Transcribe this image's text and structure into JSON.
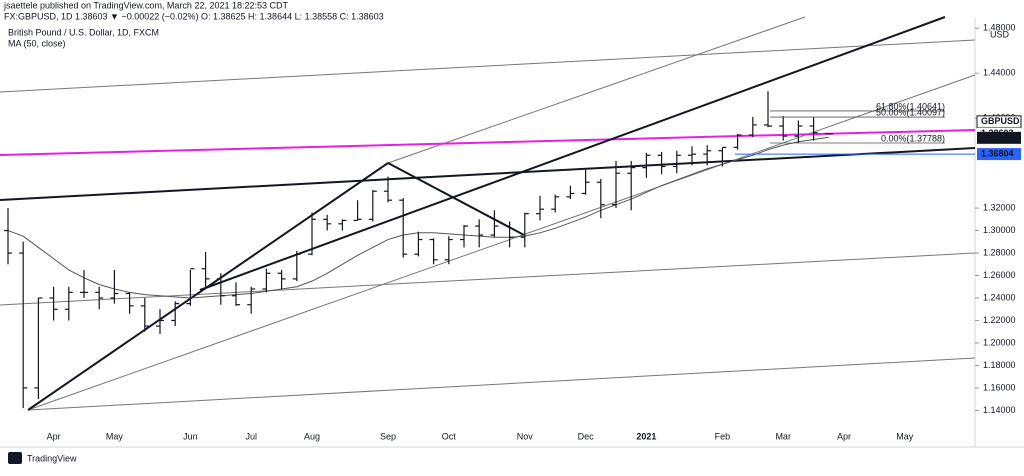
{
  "header": {
    "publisher": "jsaettele published on TradingView.com, March 22, 2021 18:22:53 CDT",
    "symbol_line": "FX:GBPUSD, 1D 1.38603 ▼ −0.00022 (−0.02%) O: 1.38625 H: 1.38644 L: 1.38558 C: 1.38603"
  },
  "footer": {
    "brand": "TradingView"
  },
  "chart_data": {
    "type": "ohlc",
    "title": "British Pound / U.S. Dollar, 1D, FXCM",
    "indicator": "MA (50, close)",
    "currency": "USD",
    "categories": [
      null,
      null,
      null,
      "Apr",
      null,
      null,
      null,
      "May",
      null,
      null,
      null,
      null,
      "Jun",
      null,
      null,
      null,
      "Jul",
      null,
      null,
      null,
      "Aug",
      null,
      null,
      null,
      null,
      "Sep",
      null,
      null,
      null,
      "Oct",
      null,
      null,
      null,
      null,
      "Nov",
      null,
      null,
      null,
      "Dec",
      null,
      null,
      null,
      "2021",
      null,
      null,
      null,
      null,
      "Feb",
      null,
      null,
      null,
      "Mar",
      null,
      null,
      null,
      "Apr",
      null,
      null,
      null,
      "May",
      null,
      null,
      null,
      null
    ],
    "open": [
      1.3,
      1.28,
      1.16,
      1.24,
      1.23,
      1.245,
      1.245,
      1.24,
      1.244,
      1.233,
      1.215,
      1.22,
      1.235,
      1.266,
      1.257,
      1.242,
      1.234,
      1.248,
      1.262,
      1.257,
      1.279,
      1.31,
      1.306,
      1.309,
      1.31,
      1.335,
      1.327,
      1.279,
      1.292,
      1.274,
      1.292,
      1.304,
      1.296,
      1.304,
      1.294,
      1.315,
      1.319,
      1.33,
      1.333,
      1.343,
      1.323,
      1.351,
      1.356,
      1.367,
      1.357,
      1.367,
      1.368,
      1.371,
      1.374,
      1.385,
      1.394,
      1.393,
      1.384,
      1.393,
      1.38625,
      null,
      null,
      null,
      null,
      null,
      null,
      null,
      null,
      null
    ],
    "high": [
      1.32,
      1.29,
      1.24,
      1.25,
      1.25,
      1.265,
      1.25,
      1.265,
      1.245,
      1.24,
      1.23,
      1.237,
      1.265,
      1.281,
      1.262,
      1.254,
      1.25,
      1.266,
      1.265,
      1.282,
      1.316,
      1.314,
      1.31,
      1.327,
      1.336,
      1.348,
      1.329,
      1.299,
      1.293,
      1.295,
      1.305,
      1.31,
      1.318,
      1.308,
      1.316,
      1.331,
      1.332,
      1.34,
      1.354,
      1.346,
      1.362,
      1.362,
      1.369,
      1.37,
      1.371,
      1.375,
      1.376,
      1.374,
      1.386,
      1.401,
      1.424,
      1.402,
      1.398,
      1.401,
      1.38644,
      null,
      null,
      null,
      null,
      null,
      null,
      null,
      null,
      null
    ],
    "low": [
      1.27,
      1.142,
      1.15,
      1.22,
      1.22,
      1.24,
      1.23,
      1.235,
      1.226,
      1.21,
      1.208,
      1.215,
      1.233,
      1.25,
      1.234,
      1.233,
      1.226,
      1.245,
      1.248,
      1.255,
      1.278,
      1.3,
      1.3,
      1.309,
      1.308,
      1.325,
      1.276,
      1.277,
      1.27,
      1.27,
      1.285,
      1.285,
      1.294,
      1.285,
      1.285,
      1.309,
      1.316,
      1.328,
      1.332,
      1.311,
      1.32,
      1.318,
      1.347,
      1.35,
      1.351,
      1.358,
      1.358,
      1.357,
      1.372,
      1.383,
      1.392,
      1.38,
      1.378,
      1.38,
      1.38558,
      null,
      null,
      null,
      null,
      null,
      null,
      null,
      null,
      null
    ],
    "close": [
      1.28,
      1.16,
      1.24,
      1.23,
      1.245,
      1.245,
      1.24,
      1.244,
      1.233,
      1.215,
      1.22,
      1.235,
      1.266,
      1.257,
      1.242,
      1.234,
      1.248,
      1.262,
      1.257,
      1.279,
      1.31,
      1.306,
      1.309,
      1.31,
      1.335,
      1.327,
      1.279,
      1.292,
      1.274,
      1.292,
      1.304,
      1.296,
      1.304,
      1.294,
      1.315,
      1.319,
      1.33,
      1.333,
      1.343,
      1.323,
      1.351,
      1.356,
      1.367,
      1.357,
      1.367,
      1.368,
      1.371,
      1.374,
      1.385,
      1.394,
      1.393,
      1.384,
      1.393,
      1.387,
      1.38603,
      null,
      null,
      null,
      null,
      null,
      null,
      null,
      null,
      null
    ],
    "ma": {
      "color": "#555555",
      "values": [
        1.3,
        1.295,
        1.285,
        1.275,
        1.265,
        1.258,
        1.252,
        1.248,
        1.245,
        1.243,
        1.242,
        1.241,
        1.24,
        1.241,
        1.242,
        1.243,
        1.244,
        1.246,
        1.248,
        1.25,
        1.255,
        1.262,
        1.27,
        1.278,
        1.285,
        1.292,
        1.296,
        1.298,
        1.298,
        1.297,
        1.296,
        1.295,
        1.294,
        1.294,
        1.295,
        1.298,
        1.302,
        1.307,
        1.312,
        1.318,
        1.323,
        1.328,
        1.334,
        1.34,
        1.345,
        1.35,
        1.355,
        1.359,
        1.363,
        1.367,
        1.372,
        1.376,
        1.379,
        1.381,
        1.383,
        null,
        null,
        null,
        null,
        null,
        null,
        null,
        null,
        null
      ]
    },
    "color": "#131722",
    "ylim": [
      1.127,
      1.49
    ],
    "yticks": [
      {
        "value": 1.14,
        "label": "1.14000"
      },
      {
        "value": 1.16,
        "label": "1.16000"
      },
      {
        "value": 1.18,
        "label": "1.18000"
      },
      {
        "value": 1.2,
        "label": "1.20000"
      },
      {
        "value": 1.22,
        "label": "1.22000"
      },
      {
        "value": 1.24,
        "label": "1.24000"
      },
      {
        "value": 1.26,
        "label": "1.26000"
      },
      {
        "value": 1.28,
        "label": "1.28000"
      },
      {
        "value": 1.3,
        "label": "1.30000"
      },
      {
        "value": 1.32,
        "label": "1.32000"
      },
      {
        "value": 1.4,
        "label": "1.40000"
      },
      {
        "value": 1.44,
        "label": "1.44000"
      },
      {
        "value": 1.48,
        "label": "1.48000"
      }
    ],
    "price_labels": [
      {
        "name": "GBPUSD",
        "value": 1.38603,
        "color": "#131722"
      },
      {
        "value": {
          "value": 1.3825,
          "label": "1.38250"
        },
        "color": "#131722"
      },
      {
        "value": {
          "value": 1.36804,
          "label": "1.36804"
        },
        "color": "#2962ff"
      }
    ],
    "fib": [
      {
        "label": "61.80%(1.40641)",
        "value": 1.40641
      },
      {
        "label": "50.00%(1.40097)",
        "value": 1.40097
      },
      {
        "label": "0.00%(1.37788)",
        "value": 1.37788
      }
    ]
  }
}
